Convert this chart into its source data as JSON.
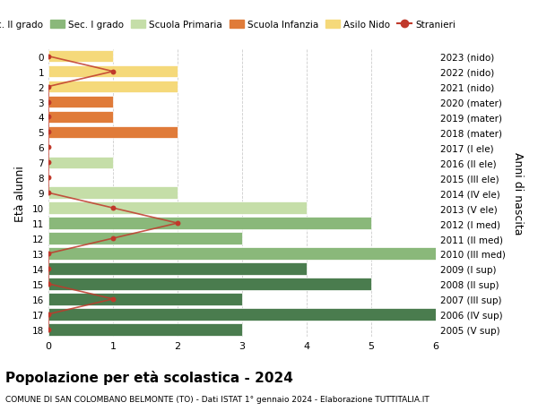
{
  "ages": [
    18,
    17,
    16,
    15,
    14,
    13,
    12,
    11,
    10,
    9,
    8,
    7,
    6,
    5,
    4,
    3,
    2,
    1,
    0
  ],
  "right_labels": [
    "2005 (V sup)",
    "2006 (IV sup)",
    "2007 (III sup)",
    "2008 (II sup)",
    "2009 (I sup)",
    "2010 (III med)",
    "2011 (II med)",
    "2012 (I med)",
    "2013 (V ele)",
    "2014 (IV ele)",
    "2015 (III ele)",
    "2016 (II ele)",
    "2017 (I ele)",
    "2018 (mater)",
    "2019 (mater)",
    "2020 (mater)",
    "2021 (nido)",
    "2022 (nido)",
    "2023 (nido)"
  ],
  "bar_values": [
    3,
    6,
    3,
    5,
    4,
    6,
    3,
    5,
    4,
    2,
    0,
    1,
    0,
    2,
    1,
    1,
    2,
    2,
    1
  ],
  "bar_colors": [
    "#4a7c4e",
    "#4a7c4e",
    "#4a7c4e",
    "#4a7c4e",
    "#4a7c4e",
    "#8ab87a",
    "#8ab87a",
    "#8ab87a",
    "#c5dea8",
    "#c5dea8",
    "#c5dea8",
    "#c5dea8",
    "#c5dea8",
    "#e07b39",
    "#e07b39",
    "#e07b39",
    "#f5d97a",
    "#f5d97a",
    "#f5d97a"
  ],
  "stranieri_values": [
    0,
    0,
    1,
    0,
    0,
    0,
    1,
    2,
    1,
    0,
    0,
    0,
    0,
    0,
    0,
    0,
    0,
    1,
    0
  ],
  "stranieri_color": "#c0392b",
  "legend_items": [
    {
      "label": "Sec. II grado",
      "color": "#4a7c4e"
    },
    {
      "label": "Sec. I grado",
      "color": "#8ab87a"
    },
    {
      "label": "Scuola Primaria",
      "color": "#c5dea8"
    },
    {
      "label": "Scuola Infanzia",
      "color": "#e07b39"
    },
    {
      "label": "Asilo Nido",
      "color": "#f5d97a"
    },
    {
      "label": "Stranieri",
      "color": "#c0392b"
    }
  ],
  "ylabel_left": "Età alunni",
  "ylabel_right": "Anni di nascita",
  "title": "Popolazione per età scolastica - 2024",
  "subtitle": "COMUNE DI SAN COLOMBANO BELMONTE (TO) - Dati ISTAT 1° gennaio 2024 - Elaborazione TUTTITALIA.IT",
  "xlim": [
    0,
    6
  ],
  "background_color": "#ffffff",
  "grid_color": "#cccccc"
}
